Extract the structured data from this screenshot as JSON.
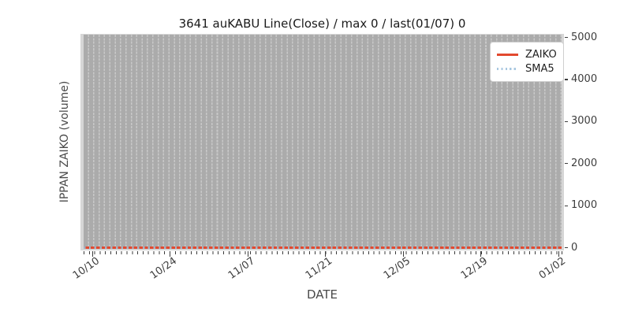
{
  "chart_data": {
    "type": "line",
    "title": "3641 auKABU Line(Close) / max 0 / last(01/07) 0",
    "xlabel": "DATE",
    "ylabel": "IPPAN ZAIKO (volume)",
    "x_tick_labels": [
      "10/10",
      "10/24",
      "11/07",
      "11/21",
      "12/05",
      "12/19",
      "01/02"
    ],
    "x_minor_tick_interval": "1 day",
    "x_range": [
      "10/10",
      "01/07"
    ],
    "y_tick_labels": [
      "0",
      "1000",
      "2000",
      "3000",
      "4000",
      "5000"
    ],
    "ylim": [
      0,
      5000
    ],
    "y_axis_side": "right",
    "grid": "dense vertical dashed daily gridlines on gray plot background",
    "legend_position": "upper right",
    "series": [
      {
        "name": "ZAIKO",
        "style": "solid",
        "color": "#e2492f",
        "values_constant": 0,
        "note": "flat at 0 for every date from 10/10 to 01/07"
      },
      {
        "name": "SMA5",
        "style": "dotted",
        "color": "#a8c7e0",
        "values_constant": 0,
        "note": "flat at 0 for every date from 10/10 to 01/07"
      }
    ],
    "stats": {
      "max": 0,
      "last_date": "01/07",
      "last_value": 0
    }
  },
  "colors": {
    "figure_background": "#ffffff",
    "plot_background_edge": "#d6d6d6",
    "plot_background_inner": "#ababab",
    "gridline_dash": "#c8c8c8",
    "zaiko_line": "#e2492f",
    "sma5_line": "#a8c7e0",
    "tick_text": "#3d3d3d",
    "legend_border": "#cfcfcf"
  }
}
